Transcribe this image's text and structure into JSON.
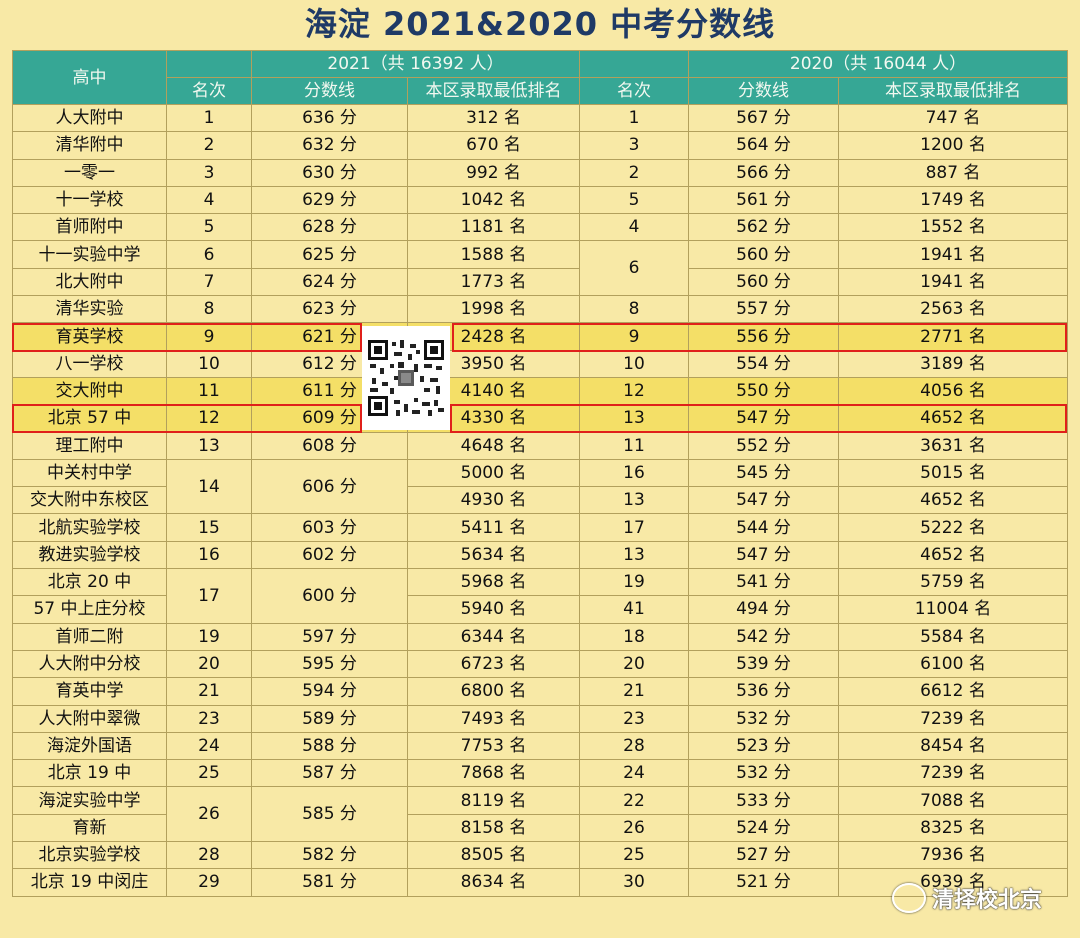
{
  "title": "海淀 2021&2020 中考分数线",
  "header": {
    "school": "高中",
    "year2021": "2021（共 16392 人）",
    "year2020": "2020（共 16044 人）",
    "rank": "名次",
    "score": "分数线",
    "district_rank": "本区录取最低排名"
  },
  "rows": [
    {
      "school": "人大附中",
      "r21": "1",
      "s21": "636 分",
      "d21": "312 名",
      "r20": "1",
      "s20": "567 分",
      "d20": "747 名"
    },
    {
      "school": "清华附中",
      "r21": "2",
      "s21": "632 分",
      "d21": "670 名",
      "r20": "3",
      "s20": "564 分",
      "d20": "1200 名"
    },
    {
      "school": "一零一",
      "r21": "3",
      "s21": "630 分",
      "d21": "992 名",
      "r20": "2",
      "s20": "566 分",
      "d20": "887 名"
    },
    {
      "school": "十一学校",
      "r21": "4",
      "s21": "629 分",
      "d21": "1042 名",
      "r20": "5",
      "s20": "561 分",
      "d20": "1749 名"
    },
    {
      "school": "首师附中",
      "r21": "5",
      "s21": "628 分",
      "d21": "1181 名",
      "r20": "4",
      "s20": "562 分",
      "d20": "1552 名"
    },
    {
      "school": "十一实验中学",
      "r21": "6",
      "s21": "625 分",
      "d21": "1588 名",
      "r20": "6",
      "s20": "560 分",
      "d20": "1941 名"
    },
    {
      "school": "北大附中",
      "r21": "7",
      "s21": "624 分",
      "d21": "1773 名",
      "r20": "",
      "s20": "560 分",
      "d20": "1941 名"
    },
    {
      "school": "清华实验",
      "r21": "8",
      "s21": "623 分",
      "d21": "1998 名",
      "r20": "8",
      "s20": "557 分",
      "d20": "2563 名"
    },
    {
      "school": "育英学校",
      "r21": "9",
      "s21": "621 分",
      "d21": "2428 名",
      "r20": "9",
      "s20": "556 分",
      "d20": "2771 名"
    },
    {
      "school": "八一学校",
      "r21": "10",
      "s21": "612 分",
      "d21": "3950 名",
      "r20": "10",
      "s20": "554 分",
      "d20": "3189 名"
    },
    {
      "school": "交大附中",
      "r21": "11",
      "s21": "611 分",
      "d21": "4140 名",
      "r20": "12",
      "s20": "550 分",
      "d20": "4056 名"
    },
    {
      "school": "北京 57 中",
      "r21": "12",
      "s21": "609 分",
      "d21": "4330 名",
      "r20": "13",
      "s20": "547 分",
      "d20": "4652 名"
    },
    {
      "school": "理工附中",
      "r21": "13",
      "s21": "608 分",
      "d21": "4648 名",
      "r20": "11",
      "s20": "552 分",
      "d20": "3631 名"
    },
    {
      "school": "中关村中学",
      "r21": "14",
      "s21": "606 分",
      "d21": "5000 名",
      "r20": "16",
      "s20": "545 分",
      "d20": "5015 名"
    },
    {
      "school": "交大附中东校区",
      "r21": "",
      "s21": "",
      "d21": "4930 名",
      "r20": "13",
      "s20": "547 分",
      "d20": "4652 名"
    },
    {
      "school": "北航实验学校",
      "r21": "15",
      "s21": "603 分",
      "d21": "5411 名",
      "r20": "17",
      "s20": "544 分",
      "d20": "5222 名"
    },
    {
      "school": "教进实验学校",
      "r21": "16",
      "s21": "602 分",
      "d21": "5634 名",
      "r20": "13",
      "s20": "547 分",
      "d20": "4652 名"
    },
    {
      "school": "北京 20 中",
      "r21": "17",
      "s21": "600 分",
      "d21": "5968 名",
      "r20": "19",
      "s20": "541 分",
      "d20": "5759 名"
    },
    {
      "school": "57 中上庄分校",
      "r21": "",
      "s21": "",
      "d21": "5940 名",
      "r20": "41",
      "s20": "494 分",
      "d20": "11004 名"
    },
    {
      "school": "首师二附",
      "r21": "19",
      "s21": "597 分",
      "d21": "6344 名",
      "r20": "18",
      "s20": "542 分",
      "d20": "5584 名"
    },
    {
      "school": "人大附中分校",
      "r21": "20",
      "s21": "595 分",
      "d21": "6723 名",
      "r20": "20",
      "s20": "539 分",
      "d20": "6100 名"
    },
    {
      "school": "育英中学",
      "r21": "21",
      "s21": "594 分",
      "d21": "6800 名",
      "r20": "21",
      "s20": "536 分",
      "d20": "6612 名"
    },
    {
      "school": "人大附中翠微",
      "r21": "23",
      "s21": "589 分",
      "d21": "7493 名",
      "r20": "23",
      "s20": "532 分",
      "d20": "7239 名"
    },
    {
      "school": "海淀外国语",
      "r21": "24",
      "s21": "588 分",
      "d21": "7753 名",
      "r20": "28",
      "s20": "523 分",
      "d20": "8454 名"
    },
    {
      "school": "北京 19 中",
      "r21": "25",
      "s21": "587 分",
      "d21": "7868 名",
      "r20": "24",
      "s20": "532 分",
      "d20": "7239 名"
    },
    {
      "school": "海淀实验中学",
      "r21": "26",
      "s21": "585 分",
      "d21": "8119 名",
      "r20": "22",
      "s20": "533 分",
      "d20": "7088 名"
    },
    {
      "school": "育新",
      "r21": "",
      "s21": "",
      "d21": "8158 名",
      "r20": "26",
      "s20": "524 分",
      "d20": "8325 名"
    },
    {
      "school": "北京实验学校",
      "r21": "28",
      "s21": "582 分",
      "d21": "8505 名",
      "r20": "25",
      "s20": "527 分",
      "d20": "7936 名"
    },
    {
      "school": "北京 19 中闵庄",
      "r21": "29",
      "s21": "581 分",
      "d21": "8634 名",
      "r20": "30",
      "s20": "521 分",
      "d20": "6939 名"
    }
  ],
  "watermark": "清择校北京"
}
